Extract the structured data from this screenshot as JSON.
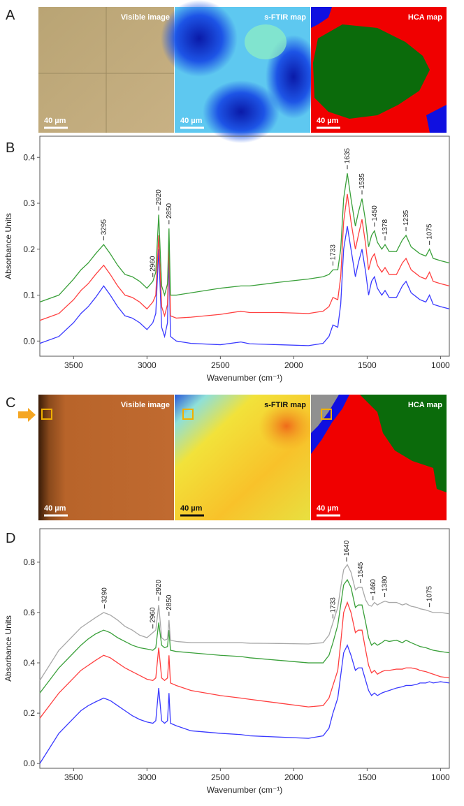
{
  "panel_labels": [
    "A",
    "B",
    "C",
    "D"
  ],
  "image_rows": [
    [
      {
        "title": "Visible image",
        "scale_bar": "40 µm"
      },
      {
        "title": "s-FTIR map",
        "scale_bar": "40 µm"
      },
      {
        "title": "HCA map",
        "scale_bar": "40 µm"
      }
    ],
    [
      {
        "title": "Visible image",
        "scale_bar": "40 µm"
      },
      {
        "title": "s-FTIR map",
        "scale_bar": "40 µm"
      },
      {
        "title": "HCA map",
        "scale_bar": "40 µm"
      }
    ]
  ],
  "chart_data": [
    {
      "type": "line",
      "xlabel": "Wavenumber (cm⁻¹)",
      "ylabel": "Absorbance Units",
      "xlim": [
        3730,
        940
      ],
      "xticks": [
        3500,
        3000,
        2500,
        2000,
        1500,
        1000
      ],
      "ylim": [
        -0.033,
        0.446
      ],
      "yticks": [
        {
          "value": 0,
          "label": "0.0"
        },
        0.1,
        0.2,
        0.3,
        0.4
      ],
      "peaks": [
        3295,
        2960,
        2920,
        2850,
        1733,
        1635,
        1535,
        1450,
        1378,
        1235,
        1075
      ],
      "x": [
        3730,
        3600,
        3500,
        3450,
        3400,
        3350,
        3295,
        3250,
        3200,
        3150,
        3100,
        3050,
        3000,
        2960,
        2940,
        2920,
        2900,
        2880,
        2860,
        2850,
        2840,
        2800,
        2700,
        2500,
        2360,
        2300,
        2100,
        1900,
        1800,
        1760,
        1733,
        1700,
        1680,
        1660,
        1635,
        1610,
        1580,
        1560,
        1535,
        1510,
        1490,
        1470,
        1450,
        1430,
        1400,
        1378,
        1350,
        1300,
        1260,
        1235,
        1200,
        1160,
        1140,
        1100,
        1075,
        1050,
        1000,
        940
      ],
      "series": [
        {
          "color": "#3a3aff",
          "values": [
            -0.005,
            0.01,
            0.04,
            0.06,
            0.075,
            0.095,
            0.12,
            0.1,
            0.075,
            0.055,
            0.05,
            0.04,
            0.025,
            0.04,
            0.06,
            0.2,
            0.03,
            0.01,
            0.04,
            0.19,
            0.01,
            0.0,
            -0.005,
            -0.008,
            -0.002,
            -0.006,
            -0.008,
            -0.01,
            -0.005,
            0.01,
            0.035,
            0.03,
            0.08,
            0.2,
            0.25,
            0.2,
            0.14,
            0.17,
            0.2,
            0.15,
            0.1,
            0.13,
            0.14,
            0.115,
            0.1,
            0.11,
            0.095,
            0.095,
            0.12,
            0.13,
            0.105,
            0.095,
            0.09,
            0.085,
            0.1,
            0.08,
            0.075,
            0.07
          ]
        },
        {
          "color": "#ff4040",
          "values": [
            0.045,
            0.06,
            0.09,
            0.11,
            0.125,
            0.145,
            0.165,
            0.145,
            0.12,
            0.1,
            0.095,
            0.085,
            0.07,
            0.085,
            0.1,
            0.23,
            0.075,
            0.055,
            0.08,
            0.22,
            0.055,
            0.05,
            0.052,
            0.058,
            0.065,
            0.062,
            0.062,
            0.06,
            0.065,
            0.075,
            0.095,
            0.09,
            0.14,
            0.26,
            0.32,
            0.26,
            0.2,
            0.23,
            0.265,
            0.21,
            0.155,
            0.18,
            0.19,
            0.165,
            0.15,
            0.16,
            0.145,
            0.145,
            0.17,
            0.18,
            0.155,
            0.145,
            0.14,
            0.135,
            0.15,
            0.13,
            0.125,
            0.12
          ]
        },
        {
          "color": "#3aa03a",
          "values": [
            0.085,
            0.1,
            0.135,
            0.155,
            0.17,
            0.19,
            0.21,
            0.19,
            0.165,
            0.145,
            0.14,
            0.13,
            0.115,
            0.13,
            0.15,
            0.275,
            0.12,
            0.1,
            0.125,
            0.245,
            0.1,
            0.1,
            0.105,
            0.115,
            0.12,
            0.12,
            0.128,
            0.135,
            0.14,
            0.145,
            0.155,
            0.155,
            0.2,
            0.31,
            0.365,
            0.31,
            0.25,
            0.28,
            0.31,
            0.26,
            0.205,
            0.23,
            0.24,
            0.215,
            0.2,
            0.21,
            0.195,
            0.195,
            0.22,
            0.23,
            0.205,
            0.195,
            0.19,
            0.185,
            0.2,
            0.18,
            0.175,
            0.17
          ]
        }
      ]
    },
    {
      "type": "line",
      "xlabel": "Wavenumber (cm⁻¹)",
      "ylabel": "Absorbance Units",
      "xlim": [
        3730,
        940
      ],
      "xticks": [
        3500,
        3000,
        2500,
        2000,
        1500,
        1000
      ],
      "ylim": [
        -0.019,
        0.933
      ],
      "yticks": [
        {
          "value": 0,
          "label": "0.0"
        },
        0.2,
        0.4,
        0.6,
        0.8
      ],
      "peaks": [
        3290,
        2960,
        2920,
        2850,
        1733,
        1640,
        1545,
        1460,
        1380,
        1075
      ],
      "x": [
        3730,
        3600,
        3500,
        3450,
        3400,
        3350,
        3295,
        3250,
        3200,
        3150,
        3100,
        3050,
        3000,
        2960,
        2940,
        2920,
        2900,
        2880,
        2860,
        2850,
        2840,
        2800,
        2700,
        2500,
        2360,
        2300,
        2100,
        1900,
        1800,
        1760,
        1733,
        1700,
        1680,
        1660,
        1635,
        1610,
        1580,
        1560,
        1535,
        1510,
        1490,
        1470,
        1450,
        1430,
        1400,
        1378,
        1350,
        1300,
        1260,
        1235,
        1200,
        1160,
        1140,
        1100,
        1075,
        1050,
        1000,
        940
      ],
      "series": [
        {
          "color": "#3a3aff",
          "values": [
            0.0,
            0.12,
            0.18,
            0.21,
            0.23,
            0.245,
            0.26,
            0.25,
            0.23,
            0.21,
            0.19,
            0.175,
            0.165,
            0.16,
            0.17,
            0.3,
            0.17,
            0.16,
            0.17,
            0.28,
            0.16,
            0.15,
            0.13,
            0.12,
            0.115,
            0.11,
            0.105,
            0.1,
            0.11,
            0.14,
            0.2,
            0.26,
            0.35,
            0.44,
            0.47,
            0.43,
            0.37,
            0.38,
            0.38,
            0.33,
            0.29,
            0.27,
            0.28,
            0.27,
            0.28,
            0.285,
            0.29,
            0.3,
            0.305,
            0.31,
            0.31,
            0.315,
            0.32,
            0.32,
            0.325,
            0.32,
            0.325,
            0.32
          ]
        },
        {
          "color": "#ff4040",
          "values": [
            0.18,
            0.28,
            0.34,
            0.37,
            0.39,
            0.41,
            0.43,
            0.42,
            0.4,
            0.38,
            0.365,
            0.35,
            0.335,
            0.33,
            0.34,
            0.46,
            0.34,
            0.33,
            0.34,
            0.43,
            0.32,
            0.31,
            0.29,
            0.27,
            0.26,
            0.255,
            0.24,
            0.225,
            0.23,
            0.26,
            0.31,
            0.37,
            0.48,
            0.6,
            0.64,
            0.6,
            0.52,
            0.53,
            0.53,
            0.45,
            0.39,
            0.36,
            0.37,
            0.355,
            0.365,
            0.37,
            0.37,
            0.375,
            0.375,
            0.38,
            0.38,
            0.375,
            0.37,
            0.365,
            0.36,
            0.355,
            0.345,
            0.34
          ]
        },
        {
          "color": "#3aa03a",
          "values": [
            0.28,
            0.38,
            0.44,
            0.47,
            0.495,
            0.515,
            0.53,
            0.52,
            0.5,
            0.485,
            0.47,
            0.46,
            0.455,
            0.45,
            0.46,
            0.56,
            0.47,
            0.46,
            0.465,
            0.53,
            0.45,
            0.445,
            0.44,
            0.43,
            0.425,
            0.42,
            0.41,
            0.4,
            0.4,
            0.43,
            0.48,
            0.55,
            0.63,
            0.71,
            0.73,
            0.7,
            0.62,
            0.63,
            0.63,
            0.56,
            0.5,
            0.47,
            0.48,
            0.47,
            0.48,
            0.49,
            0.485,
            0.49,
            0.48,
            0.49,
            0.48,
            0.47,
            0.465,
            0.46,
            0.455,
            0.45,
            0.445,
            0.44
          ]
        },
        {
          "color": "#a8a8a8",
          "values": [
            0.33,
            0.45,
            0.51,
            0.54,
            0.56,
            0.58,
            0.6,
            0.59,
            0.57,
            0.545,
            0.53,
            0.51,
            0.5,
            0.52,
            0.53,
            0.63,
            0.5,
            0.49,
            0.495,
            0.57,
            0.49,
            0.485,
            0.48,
            0.48,
            0.48,
            0.478,
            0.477,
            0.475,
            0.48,
            0.51,
            0.56,
            0.62,
            0.7,
            0.77,
            0.79,
            0.76,
            0.69,
            0.7,
            0.7,
            0.65,
            0.63,
            0.625,
            0.64,
            0.63,
            0.64,
            0.645,
            0.64,
            0.64,
            0.63,
            0.635,
            0.625,
            0.62,
            0.615,
            0.61,
            0.605,
            0.6,
            0.6,
            0.595
          ]
        }
      ]
    }
  ]
}
